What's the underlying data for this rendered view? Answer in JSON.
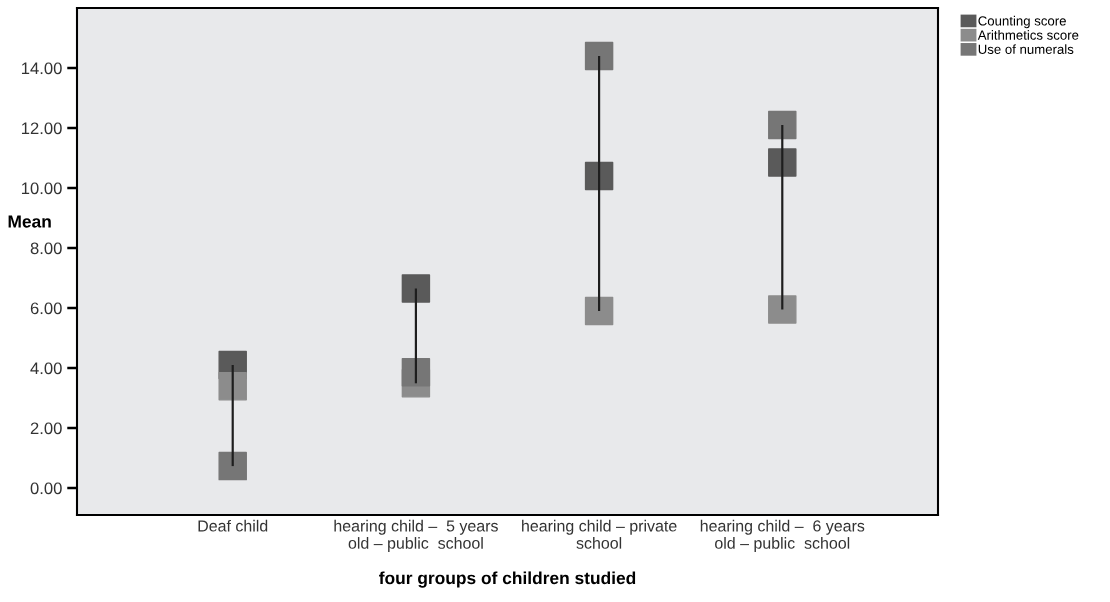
{
  "chart_data": {
    "type": "scatter",
    "xlabel": "four groups of children studied",
    "ylabel": "Mean",
    "categories": [
      "Deaf child",
      "hearing child –  5 years\nold – public  school",
      "hearing child – private\nschool",
      "hearing child –  6 years\nold – public  school"
    ],
    "series": [
      {
        "type": "bar",
        "color": "#1e1e1e",
        "base": [
          0.73,
          3.49,
          5.9,
          5.95
        ],
        "values": [
          3.37,
          3.16,
          8.5,
          6.15
        ]
      },
      {
        "name": "Counting score",
        "color": "#5a5a5a",
        "values": [
          4.1,
          6.65,
          10.4,
          10.85
        ]
      },
      {
        "name": "Arithmetics score",
        "color": "#8c8c8c",
        "values": [
          3.39,
          3.49,
          5.9,
          5.95
        ]
      },
      {
        "name": "Use of numerals",
        "color": "#767676",
        "values": [
          0.73,
          3.86,
          14.4,
          12.1
        ]
      }
    ],
    "ylim": [
      -0.9,
      16
    ],
    "yticks": [
      {
        "value": 0,
        "label": "0.00"
      },
      {
        "value": 2,
        "label": "2.00"
      },
      {
        "value": 4,
        "label": "4.00"
      },
      {
        "value": 6,
        "label": "6.00"
      },
      {
        "value": 8,
        "label": "8.00"
      },
      {
        "value": 10,
        "label": "10.00"
      },
      {
        "value": 12,
        "label": "12.00"
      },
      {
        "value": 14,
        "label": "14.00"
      }
    ],
    "marker": "square",
    "legend": "top right",
    "grid": false
  }
}
